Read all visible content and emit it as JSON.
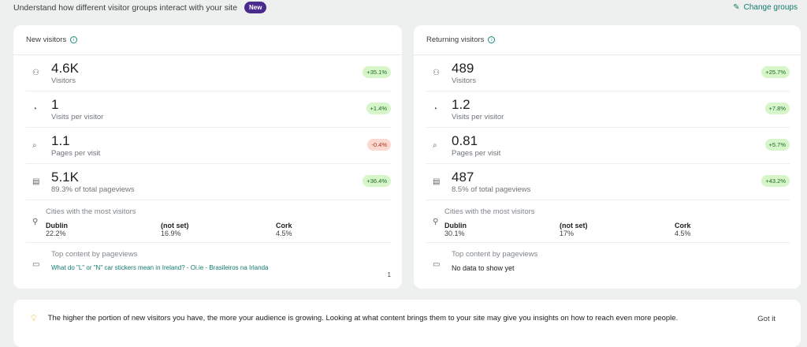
{
  "header": {
    "subtitle": "Understand how different visitor groups interact with your site",
    "new_badge": "New",
    "change_groups": "Change groups"
  },
  "cards": [
    {
      "title": "New visitors",
      "metrics": [
        {
          "icon": "people-icon",
          "value": "4.6K",
          "label": "Visitors",
          "change": "+35.1%",
          "trend": "up"
        },
        {
          "icon": "clock-icon",
          "value": "1",
          "label": "Visits per visitor",
          "change": "+1.4%",
          "trend": "up"
        },
        {
          "icon": "page-search-icon",
          "value": "1.1",
          "label": "Pages per visit",
          "change": "-0.4%",
          "trend": "down"
        },
        {
          "icon": "calendar-page-icon",
          "value": "5.1K",
          "label": "89.3% of total pageviews",
          "change": "+36.4%",
          "trend": "up"
        }
      ],
      "cities_title": "Cities with the most visitors",
      "cities": [
        {
          "name": "Dublin",
          "pct": "22.2%"
        },
        {
          "name": "(not set)",
          "pct": "16.9%"
        },
        {
          "name": "Cork",
          "pct": "4.5%"
        }
      ],
      "content_title": "Top content by pageviews",
      "content_item": "What do \"L\" or \"N\" car stickers mean in Ireland? - Oi.ie - Brasileiros na Irlanda",
      "content_count": "1"
    },
    {
      "title": "Returning visitors",
      "metrics": [
        {
          "icon": "people-icon",
          "value": "489",
          "label": "Visitors",
          "change": "+25.7%",
          "trend": "up"
        },
        {
          "icon": "clock-icon",
          "value": "1.2",
          "label": "Visits per visitor",
          "change": "+7.8%",
          "trend": "up"
        },
        {
          "icon": "page-search-icon",
          "value": "0.81",
          "label": "Pages per visit",
          "change": "+5.7%",
          "trend": "up"
        },
        {
          "icon": "calendar-page-icon",
          "value": "487",
          "label": "8.5% of total pageviews",
          "change": "+43.2%",
          "trend": "up"
        }
      ],
      "cities_title": "Cities with the most visitors",
      "cities": [
        {
          "name": "Dublin",
          "pct": "30.1%"
        },
        {
          "name": "(not set)",
          "pct": "17%"
        },
        {
          "name": "Cork",
          "pct": "4.5%"
        }
      ],
      "content_title": "Top content by pageviews",
      "content_empty": "No data to show yet"
    }
  ],
  "tip": {
    "text": "The higher the portion of new visitors you have, the more your audience is growing. Looking at what content brings them to your site may give you insights on how to reach even more people.",
    "button": "Got it"
  }
}
